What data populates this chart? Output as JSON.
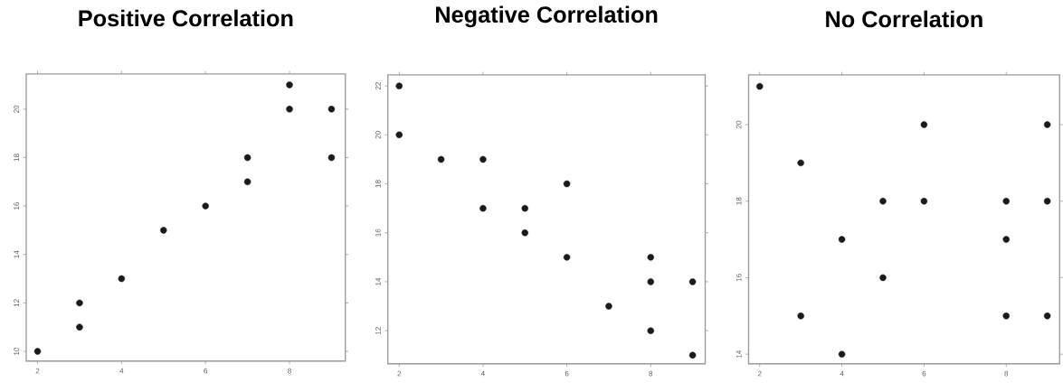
{
  "chart_data": [
    {
      "type": "scatter",
      "title": "Positive Correlation",
      "marker": "circle",
      "color": "#1a1a1a",
      "x": [
        2,
        3,
        3,
        4,
        5,
        6,
        7,
        7,
        8,
        8,
        9,
        9
      ],
      "values": [
        10,
        11,
        12,
        13,
        15,
        16,
        17,
        18,
        20,
        21,
        18,
        20
      ],
      "xlim": [
        1.73,
        9.33
      ],
      "ylim": [
        9.6,
        21.45
      ],
      "xticks": [
        2,
        4,
        6,
        8
      ],
      "yticks": [
        10,
        12,
        14,
        16,
        18,
        20
      ]
    },
    {
      "type": "scatter",
      "title": "Negative Correlation",
      "marker": "circle",
      "color": "#1a1a1a",
      "x": [
        2,
        2,
        3,
        4,
        4,
        5,
        5,
        6,
        6,
        7,
        8,
        8,
        8,
        9,
        9
      ],
      "values": [
        22,
        20,
        19,
        19,
        17,
        17,
        16,
        18,
        15,
        13,
        15,
        14,
        12,
        14,
        11
      ],
      "xlim": [
        1.73,
        9.3
      ],
      "ylim": [
        10.65,
        22.45
      ],
      "xticks": [
        2,
        4,
        6,
        8
      ],
      "yticks": [
        12,
        14,
        16,
        18,
        20,
        22
      ]
    },
    {
      "type": "scatter",
      "title": "No Correlation",
      "marker": "circle",
      "color": "#1a1a1a",
      "x": [
        2,
        3,
        3,
        4,
        4,
        5,
        5,
        6,
        6,
        8,
        8,
        8,
        9,
        9,
        9
      ],
      "values": [
        21,
        19,
        15,
        17,
        14,
        18,
        16,
        20,
        18,
        18,
        17,
        15,
        20,
        18,
        15
      ],
      "xlim": [
        1.73,
        9.3
      ],
      "ylim": [
        13.75,
        21.3
      ],
      "xticks": [
        2,
        4,
        6,
        8
      ],
      "yticks": [
        14,
        16,
        18,
        20
      ]
    }
  ]
}
